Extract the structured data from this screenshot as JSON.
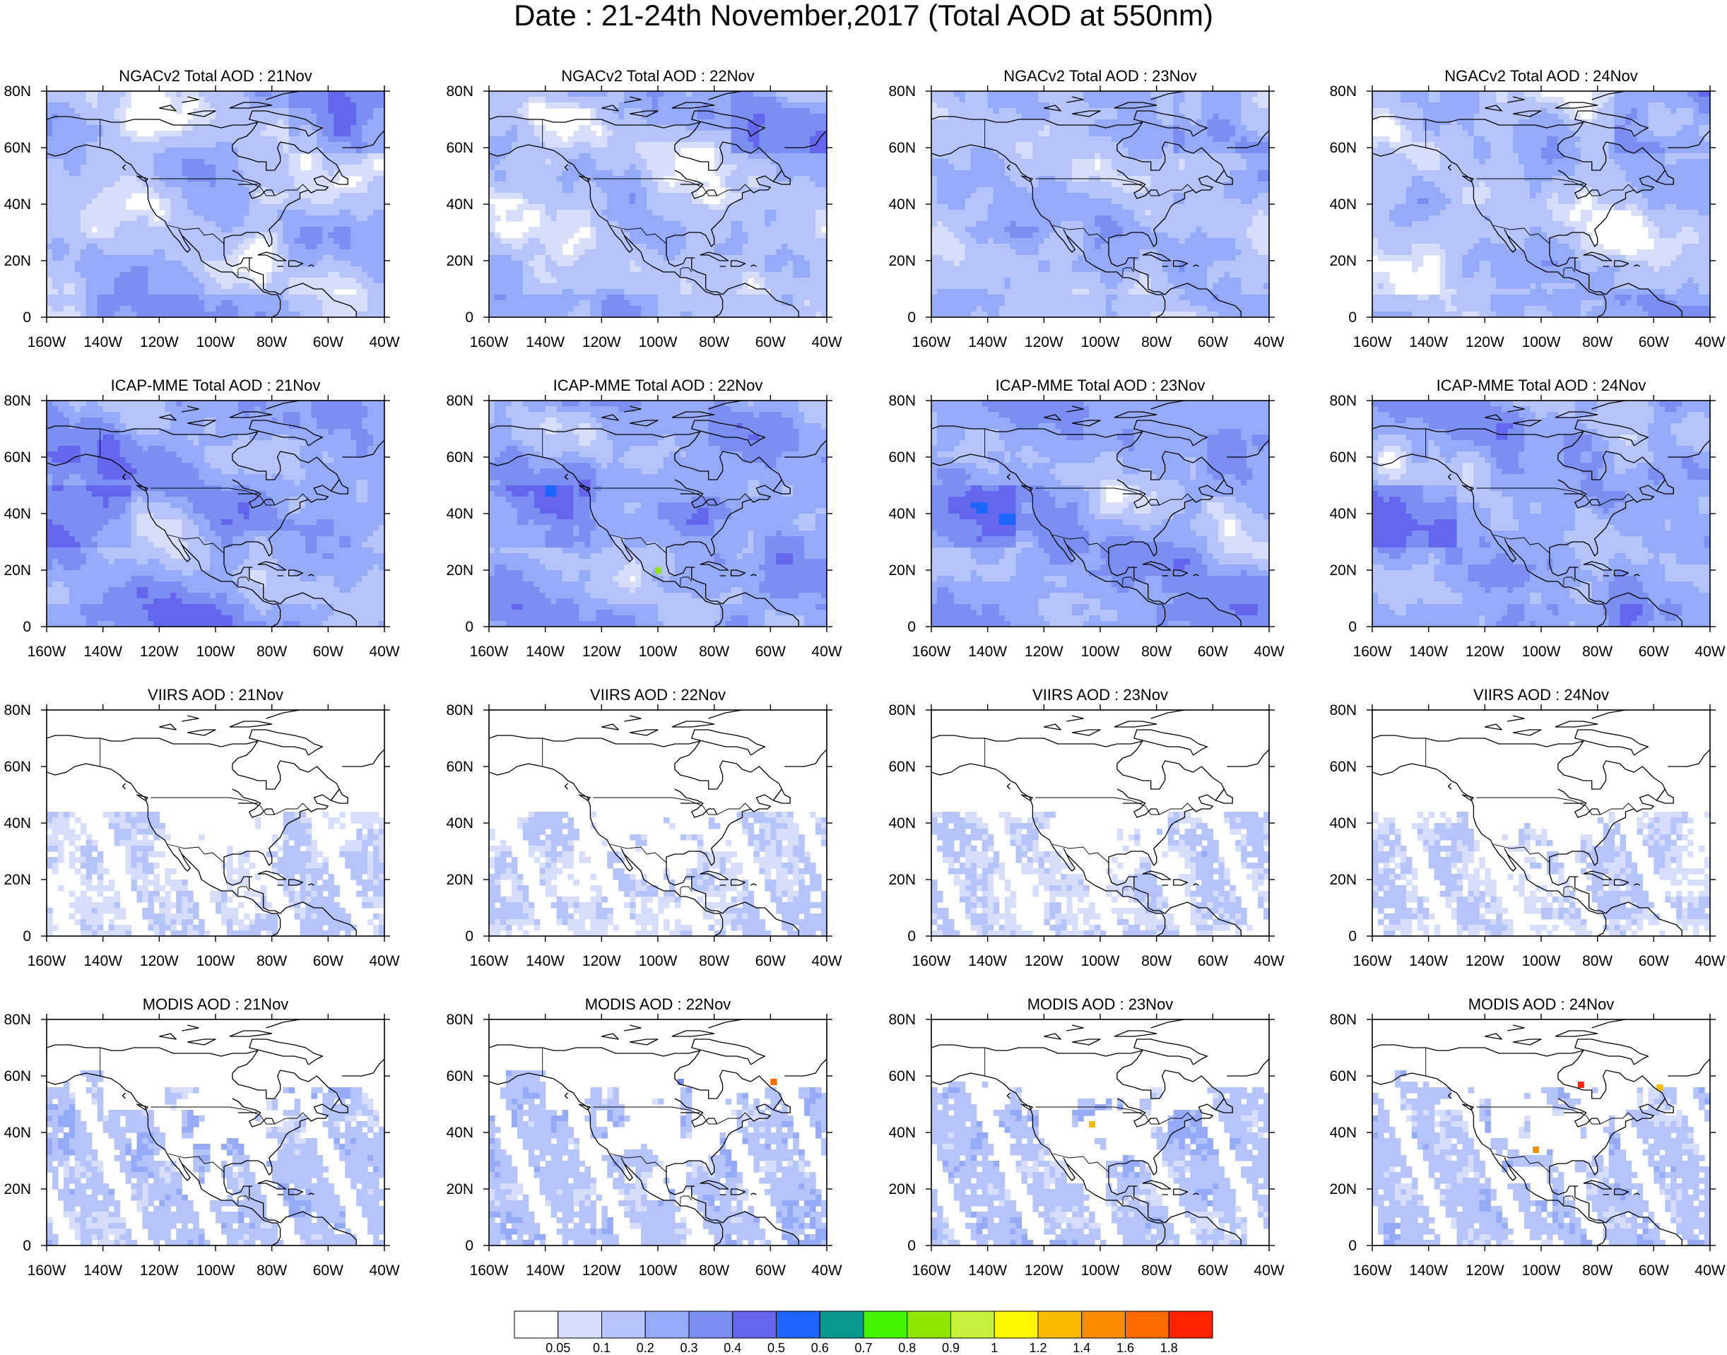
{
  "title": "Date : 21-24th November,2017 (Total AOD at 550nm)",
  "rows": [
    {
      "product": "NGACv2 Total AOD",
      "style": "smooth",
      "base": 0.16,
      "titles": [
        "NGACv2 Total AOD : 21Nov",
        "NGACv2 Total AOD : 22Nov",
        "NGACv2 Total AOD : 23Nov",
        "NGACv2 Total AOD : 24Nov"
      ]
    },
    {
      "product": "ICAP-MME Total AOD",
      "style": "smooth",
      "base": 0.24,
      "titles": [
        "ICAP-MME Total AOD : 21Nov",
        "ICAP-MME Total AOD : 22Nov",
        "ICAP-MME Total AOD : 23Nov",
        "ICAP-MME Total AOD : 24Nov"
      ]
    },
    {
      "product": "VIIRS AOD",
      "style": "satellite",
      "base": 0.08,
      "titles": [
        "VIIRS AOD : 21Nov",
        "VIIRS AOD : 22Nov",
        "VIIRS AOD : 23Nov",
        "VIIRS AOD : 24Nov"
      ]
    },
    {
      "product": "MODIS AOD",
      "style": "satellite",
      "base": 0.14,
      "titles": [
        "MODIS AOD : 21Nov",
        "MODIS AOD : 22Nov",
        "MODIS AOD : 23Nov",
        "MODIS AOD : 24Nov"
      ]
    }
  ],
  "axes": {
    "lon_range": [
      -160,
      -40
    ],
    "lat_range": [
      0,
      80
    ],
    "x_ticks": [
      "160W",
      "140W",
      "120W",
      "100W",
      "80W",
      "60W",
      "40W"
    ],
    "y_ticks": [
      "0",
      "20N",
      "40N",
      "60N",
      "80N"
    ]
  },
  "colorbar": {
    "labels": [
      "0.05",
      "0.1",
      "0.2",
      "0.3",
      "0.4",
      "0.5",
      "0.6",
      "0.7",
      "0.8",
      "0.9",
      "1",
      "1.2",
      "1.4",
      "1.6",
      "1.8"
    ],
    "colors": [
      "#ffffff",
      "#d6defc",
      "#b5c5fb",
      "#95aaf8",
      "#7b8ef2",
      "#6466ee",
      "#1e64fe",
      "#08988f",
      "#44f500",
      "#8fe600",
      "#c5f03c",
      "#fff800",
      "#fbbc00",
      "#fb8c00",
      "#fc6a00",
      "#fb2300"
    ]
  },
  "hotspots": [
    {
      "panel": [
        2,
        2
      ],
      "lon": -100,
      "lat": 20,
      "value": 0.8
    },
    {
      "panel": [
        4,
        2
      ],
      "lon": -92,
      "lat": 58,
      "value": 0.35
    },
    {
      "panel": [
        4,
        2
      ],
      "lon": -59,
      "lat": 58,
      "value": 1.6
    },
    {
      "panel": [
        4,
        3
      ],
      "lon": -103,
      "lat": 43,
      "value": 1.2
    },
    {
      "panel": [
        4,
        4
      ],
      "lon": -86,
      "lat": 57,
      "value": 1.9
    },
    {
      "panel": [
        4,
        4
      ],
      "lon": -58,
      "lat": 56,
      "value": 1.2
    },
    {
      "panel": [
        4,
        4
      ],
      "lon": -102,
      "lat": 34,
      "value": 1.5
    }
  ]
}
